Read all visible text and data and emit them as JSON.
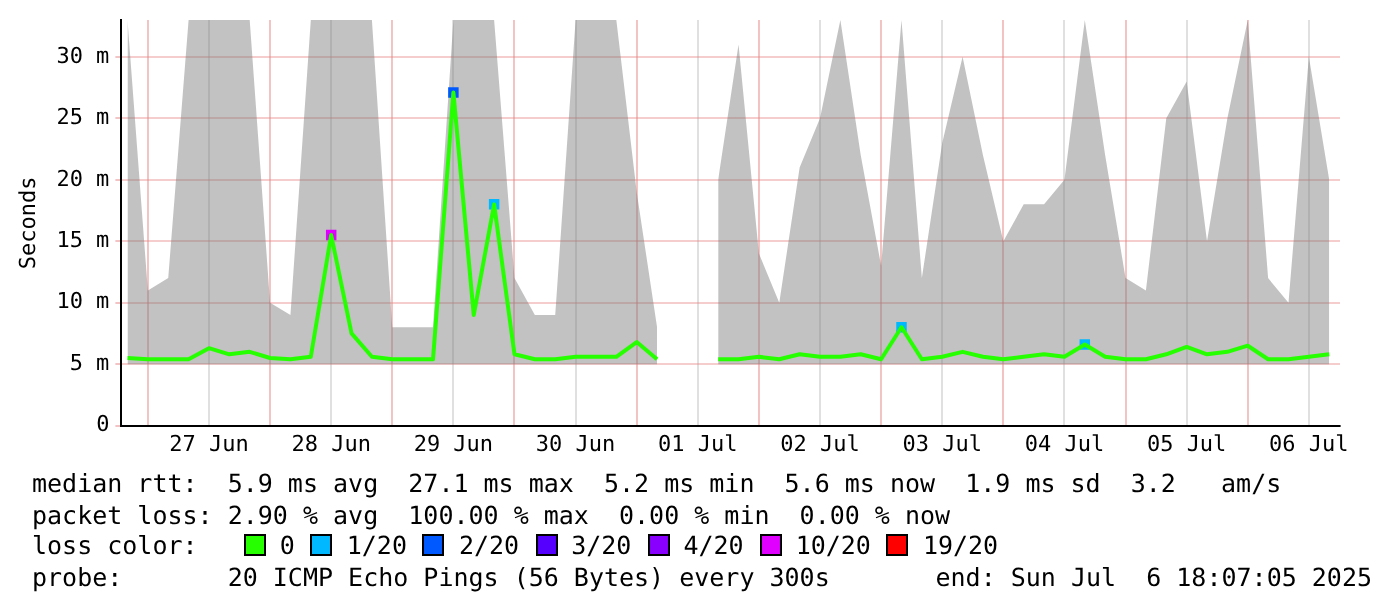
{
  "chart_data": {
    "type": "line",
    "ylabel": "Seconds",
    "legend_title": "loss color:",
    "legend": "bottom",
    "grid": true,
    "marker": "none",
    "line_style": "solid",
    "xlim": [
      "2025-06-26T18:48",
      "2025-07-06T18:07"
    ],
    "xticks": [
      {
        "value": "2025-06-27T00:00",
        "label": null
      },
      {
        "value": "2025-06-27T12:00",
        "label": "27 Jun"
      },
      {
        "value": "2025-06-28T00:00",
        "label": null
      },
      {
        "value": "2025-06-28T12:00",
        "label": "28 Jun"
      },
      {
        "value": "2025-06-29T00:00",
        "label": null
      },
      {
        "value": "2025-06-29T12:00",
        "label": "29 Jun"
      },
      {
        "value": "2025-06-30T00:00",
        "label": null
      },
      {
        "value": "2025-06-30T12:00",
        "label": "30 Jun"
      },
      {
        "value": "2025-07-01T00:00",
        "label": null
      },
      {
        "value": "2025-07-01T12:00",
        "label": "01 Jul"
      },
      {
        "value": "2025-07-02T00:00",
        "label": null
      },
      {
        "value": "2025-07-02T12:00",
        "label": "02 Jul"
      },
      {
        "value": "2025-07-03T00:00",
        "label": null
      },
      {
        "value": "2025-07-03T12:00",
        "label": "03 Jul"
      },
      {
        "value": "2025-07-04T00:00",
        "label": null
      },
      {
        "value": "2025-07-04T12:00",
        "label": "04 Jul"
      },
      {
        "value": "2025-07-05T00:00",
        "label": null
      },
      {
        "value": "2025-07-05T12:00",
        "label": "05 Jul"
      },
      {
        "value": "2025-07-06T00:00",
        "label": null
      },
      {
        "value": "2025-07-06T12:00",
        "label": "06 Jul"
      }
    ],
    "ylim": [
      0,
      33
    ],
    "yticks": [
      0,
      {
        "value": 5,
        "label": "5 m"
      },
      {
        "value": 10,
        "label": "10 m"
      },
      {
        "value": 15,
        "label": "15 m"
      },
      {
        "value": 20,
        "label": "20 m"
      },
      {
        "value": 25,
        "label": "25 m"
      },
      {
        "value": 30,
        "label": "30 m"
      }
    ],
    "x": [
      "2025-06-26T20:00",
      "2025-06-27T00:00",
      "2025-06-27T04:00",
      "2025-06-27T08:00",
      "2025-06-27T12:00",
      "2025-06-27T16:00",
      "2025-06-27T20:00",
      "2025-06-28T00:00",
      "2025-06-28T04:00",
      "2025-06-28T08:00",
      "2025-06-28T12:00",
      "2025-06-28T16:00",
      "2025-06-28T20:00",
      "2025-06-29T00:00",
      "2025-06-29T04:00",
      "2025-06-29T08:00",
      "2025-06-29T12:00",
      "2025-06-29T16:00",
      "2025-06-29T20:00",
      "2025-06-30T00:00",
      "2025-06-30T04:00",
      "2025-06-30T08:00",
      "2025-06-30T12:00",
      "2025-06-30T16:00",
      "2025-06-30T20:00",
      "2025-07-01T00:00",
      "2025-07-01T04:00",
      "2025-07-01T08:00",
      "2025-07-01T12:00",
      "2025-07-01T16:00",
      "2025-07-01T20:00",
      "2025-07-02T00:00",
      "2025-07-02T04:00",
      "2025-07-02T08:00",
      "2025-07-02T12:00",
      "2025-07-02T16:00",
      "2025-07-02T20:00",
      "2025-07-03T00:00",
      "2025-07-03T04:00",
      "2025-07-03T08:00",
      "2025-07-03T12:00",
      "2025-07-03T16:00",
      "2025-07-03T20:00",
      "2025-07-04T00:00",
      "2025-07-04T04:00",
      "2025-07-04T08:00",
      "2025-07-04T12:00",
      "2025-07-04T16:00",
      "2025-07-04T20:00",
      "2025-07-05T00:00",
      "2025-07-05T04:00",
      "2025-07-05T08:00",
      "2025-07-05T12:00",
      "2025-07-05T16:00",
      "2025-07-05T20:00",
      "2025-07-06T00:00",
      "2025-07-06T04:00",
      "2025-07-06T08:00",
      "2025-07-06T12:00",
      "2025-07-06T16:00"
    ],
    "series": [
      {
        "name": "0",
        "color": "#26ff00",
        "values": [
          5.5,
          5.4,
          5.4,
          5.4,
          6.3,
          5.8,
          6.0,
          5.5,
          5.4,
          5.6,
          15.5,
          7.5,
          5.6,
          5.4,
          5.4,
          5.4,
          27.1,
          9,
          18,
          5.8,
          5.4,
          5.4,
          5.6,
          5.6,
          5.6,
          6.8,
          5.4,
          null,
          null,
          5.4,
          5.4,
          5.6,
          5.4,
          5.8,
          5.6,
          5.6,
          5.8,
          5.4,
          8,
          5.4,
          5.6,
          6.0,
          5.6,
          5.4,
          5.6,
          5.8,
          5.6,
          6.6,
          5.6,
          5.4,
          5.4,
          5.8,
          6.4,
          5.8,
          6.0,
          6.5,
          5.4,
          5.4,
          5.6,
          5.8
        ],
        "lower": [
          5,
          5,
          5,
          5,
          5,
          5,
          5,
          5,
          5,
          5,
          5,
          5,
          5,
          5,
          5,
          5,
          5,
          5,
          5,
          5,
          5,
          5,
          5,
          5,
          5,
          5,
          5,
          null,
          null,
          5,
          5,
          5,
          5,
          5,
          5,
          5,
          5,
          5,
          5,
          5,
          5,
          5,
          5,
          5,
          5,
          5,
          5,
          5,
          5,
          5,
          5,
          5,
          5,
          5,
          5,
          5,
          5,
          5,
          5,
          5
        ],
        "upper": [
          33,
          11,
          12,
          33,
          33,
          33,
          33,
          10,
          9,
          33,
          33,
          33,
          33,
          8,
          8,
          8,
          33,
          33,
          33,
          12,
          9,
          9,
          33,
          33,
          33,
          19,
          8,
          null,
          null,
          20,
          31,
          14,
          10,
          21,
          25,
          33,
          22,
          13,
          33,
          12,
          23,
          30,
          22,
          15,
          18,
          18,
          20,
          33,
          22,
          12,
          11,
          25,
          28,
          15,
          25,
          33,
          12,
          10,
          30,
          20
        ]
      },
      {
        "name": "1/20",
        "color": "#00b8ff",
        "type": "scatter",
        "marker": "square",
        "x": [
          "2025-06-29T20:00",
          "2025-07-03T04:00",
          "2025-07-04T16:00"
        ],
        "values": [
          18,
          8,
          6.6
        ]
      },
      {
        "name": "2/20",
        "color": "#0059ff",
        "type": "scatter",
        "marker": "square",
        "x": [
          "2025-06-29T12:00"
        ],
        "values": [
          27.1
        ]
      },
      {
        "name": "3/20",
        "color": "#5500ff",
        "type": "scatter",
        "marker": "square",
        "values": [
          null,
          null,
          null,
          null,
          null,
          null,
          null,
          null,
          null,
          null,
          null,
          null,
          null,
          null,
          null,
          null,
          null,
          null,
          null,
          null,
          null,
          null,
          null,
          null,
          null,
          null,
          null,
          null,
          null,
          null,
          null,
          null,
          null,
          null,
          null,
          null,
          null,
          null,
          null,
          null,
          null,
          null,
          null,
          null,
          null,
          null,
          null,
          null,
          null,
          null,
          null,
          null,
          null,
          null,
          null,
          null,
          null,
          null,
          null,
          null
        ]
      },
      {
        "name": "4/20",
        "color": "#8a00ff",
        "type": "scatter",
        "marker": "square",
        "values": [
          null,
          null,
          null,
          null,
          null,
          null,
          null,
          null,
          null,
          null,
          null,
          null,
          null,
          null,
          null,
          null,
          null,
          null,
          null,
          null,
          null,
          null,
          null,
          null,
          null,
          null,
          null,
          null,
          null,
          null,
          null,
          null,
          null,
          null,
          null,
          null,
          null,
          null,
          null,
          null,
          null,
          null,
          null,
          null,
          null,
          null,
          null,
          null,
          null,
          null,
          null,
          null,
          null,
          null,
          null,
          null,
          null,
          null,
          null,
          null
        ]
      },
      {
        "name": "10/20",
        "color": "#df00ff",
        "type": "scatter",
        "marker": "square",
        "x": [
          "2025-06-28T12:00"
        ],
        "values": [
          15.5
        ]
      },
      {
        "name": "19/20",
        "color": "#ff0000",
        "type": "scatter",
        "marker": "square",
        "values": [
          null,
          null,
          null,
          null,
          null,
          null,
          null,
          null,
          null,
          null,
          null,
          null,
          null,
          null,
          null,
          null,
          null,
          null,
          null,
          null,
          null,
          null,
          null,
          null,
          null,
          null,
          null,
          null,
          null,
          null,
          null,
          null,
          null,
          null,
          null,
          null,
          null,
          null,
          null,
          null,
          null,
          null,
          null,
          null,
          null,
          null,
          null,
          null,
          null,
          null,
          null,
          null,
          null,
          null,
          null,
          null,
          null,
          null,
          null,
          null
        ]
      }
    ],
    "annotations": [
      "median rtt:  5.9 ms avg  27.1 ms max  5.2 ms min  5.6 ms now  1.9 ms sd  3.2   am/s",
      "packet loss: 2.90 % avg  100.00 % max  0.00 % min  0.00 % now",
      "probe:       20 ICMP Echo Pings (56 Bytes) every 300s",
      "end: Sun Jul  6 18:07:05 2025"
    ]
  }
}
